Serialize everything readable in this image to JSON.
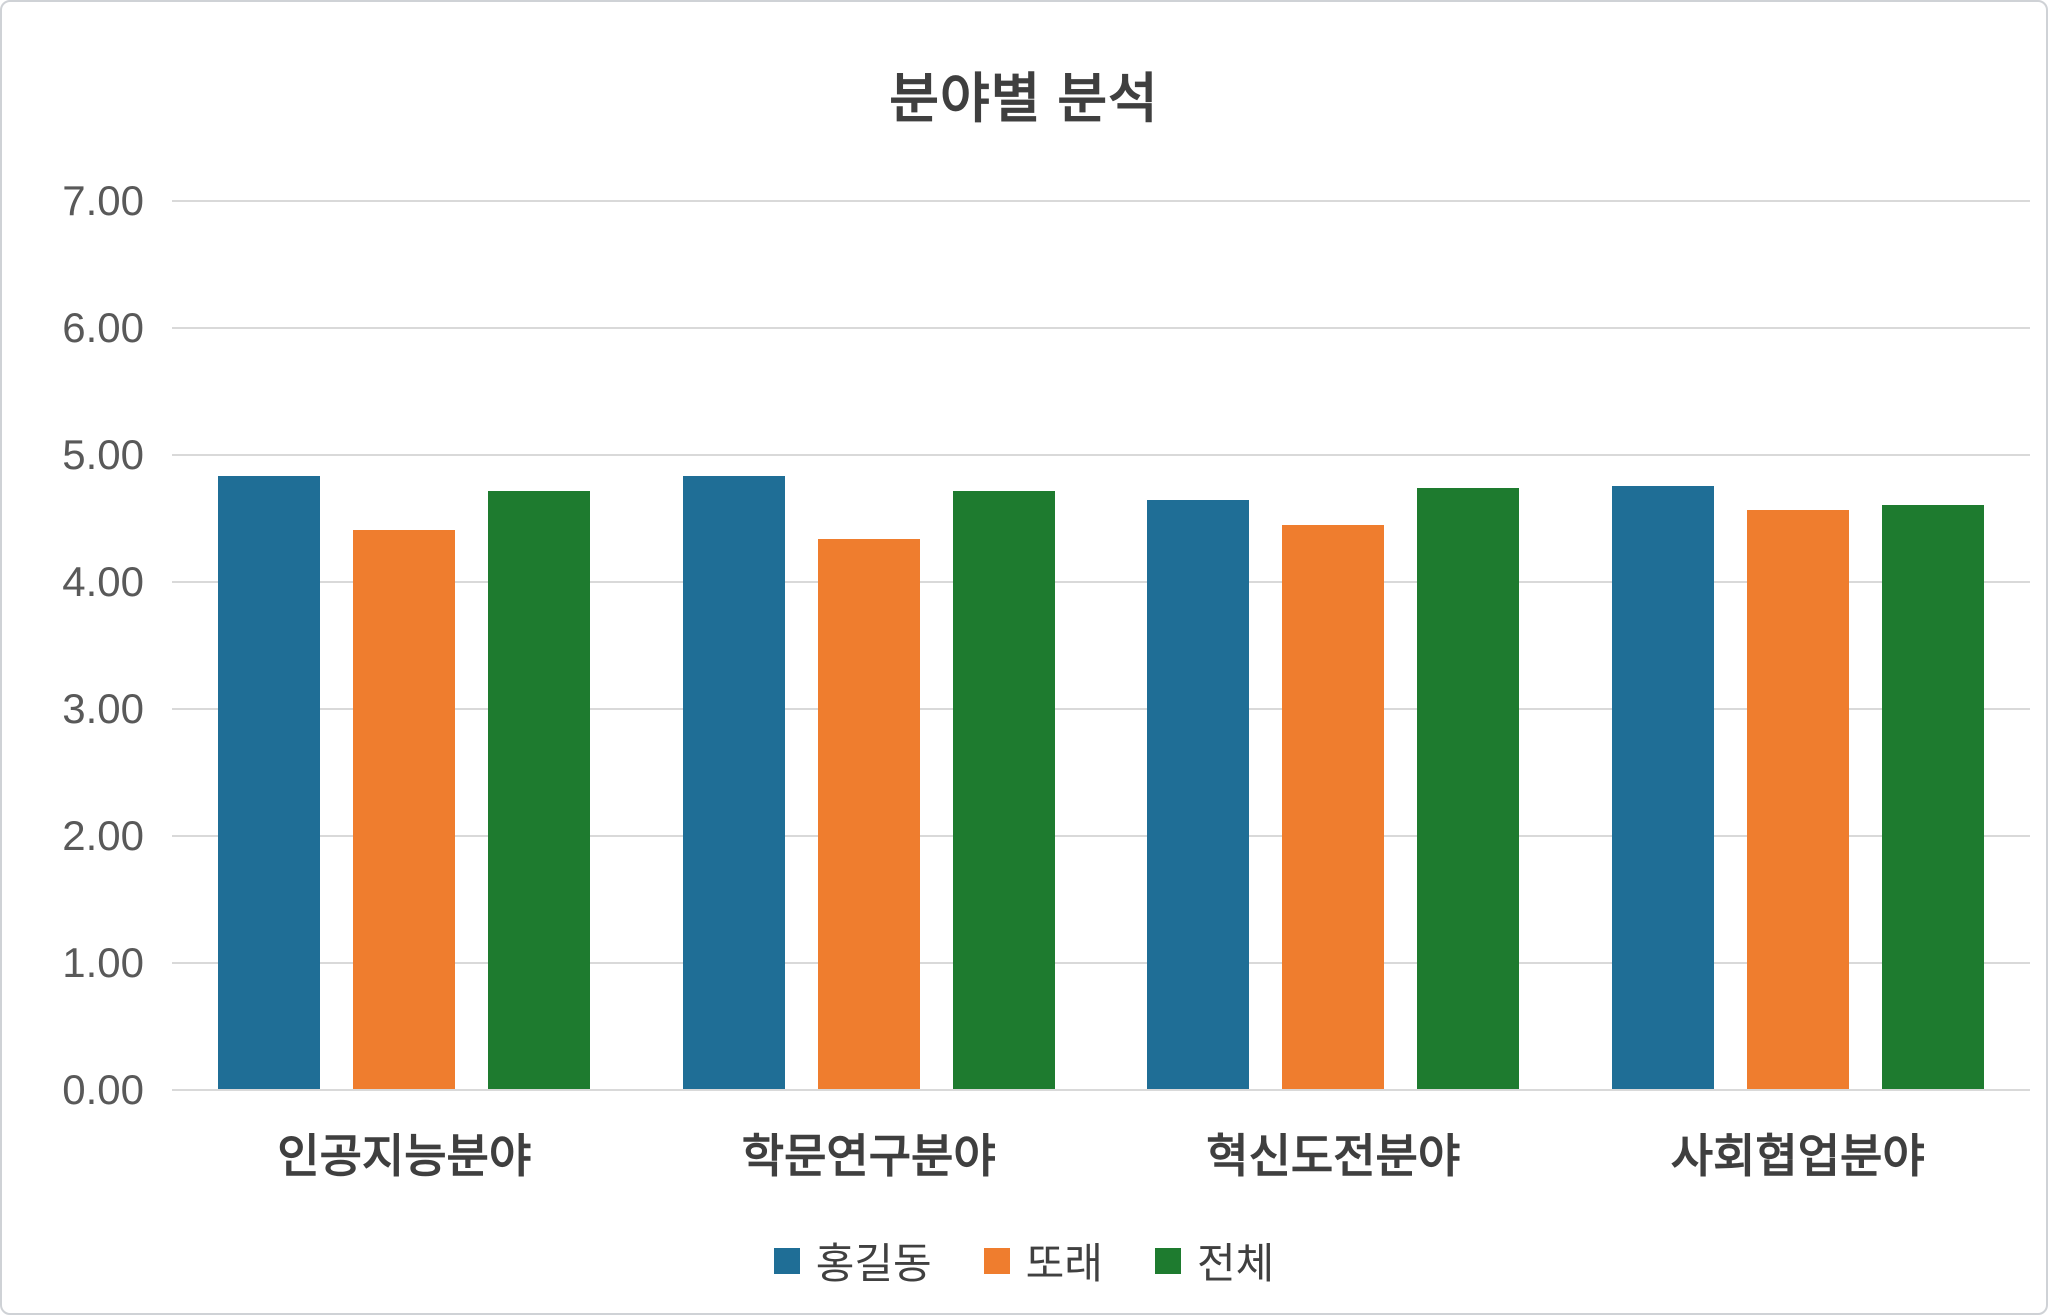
{
  "chart_data": {
    "type": "bar",
    "title": "분야별 분석",
    "categories": [
      "인공지능분야",
      "학문연구분야",
      "혁신도전분야",
      "사회협업분야"
    ],
    "series": [
      {
        "name": "홍길동",
        "color": "#1f6e96",
        "values": [
          4.83,
          4.83,
          4.64,
          4.75
        ]
      },
      {
        "name": "또래",
        "color": "#ef7d2e",
        "values": [
          4.4,
          4.33,
          4.44,
          4.56
        ]
      },
      {
        "name": "전체",
        "color": "#1e7b2f",
        "values": [
          4.71,
          4.71,
          4.73,
          4.6
        ]
      }
    ],
    "ylim": [
      0,
      7
    ],
    "yticks": [
      "0.00",
      "1.00",
      "2.00",
      "3.00",
      "4.00",
      "5.00",
      "6.00",
      "7.00"
    ],
    "xlabel": "",
    "ylabel": "",
    "grid": "horizontal",
    "legend_position": "bottom"
  }
}
